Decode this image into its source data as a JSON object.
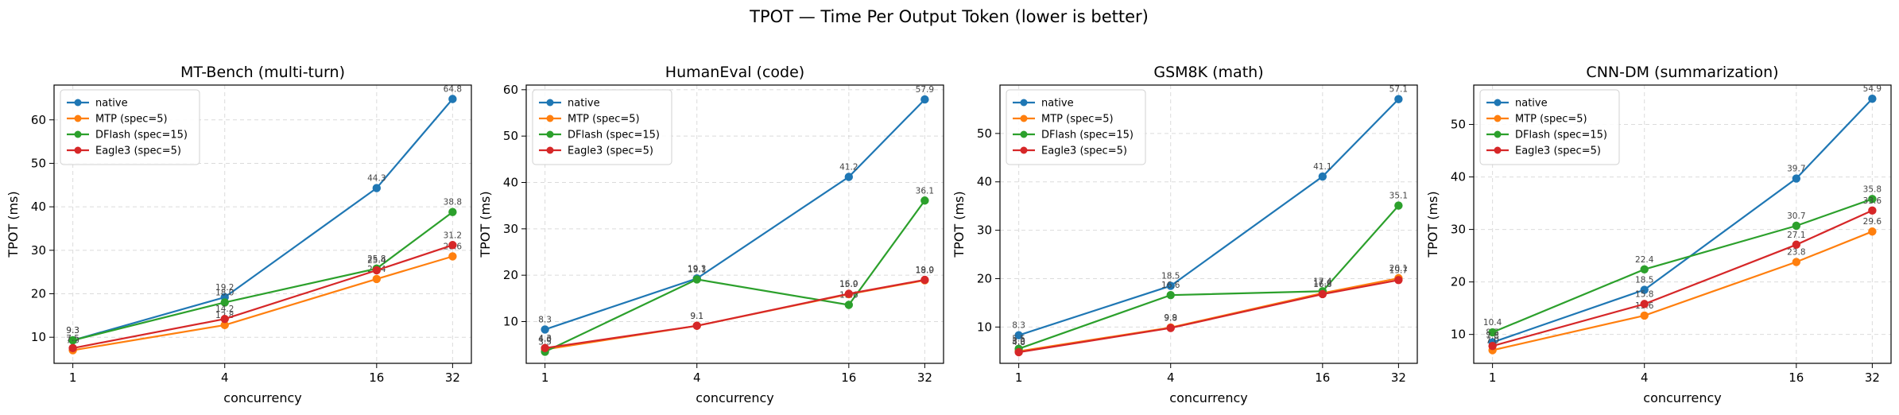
{
  "figure": {
    "title": "TPOT — Time Per Output Token (lower is better)"
  },
  "chart_data": [
    {
      "type": "line",
      "title": "MT-Bench (multi-turn)",
      "xlabel": "concurrency",
      "ylabel": "TPOT (ms)",
      "x": [
        1,
        4,
        16,
        32
      ],
      "xscale": "log2",
      "ylim": [
        4,
        68
      ],
      "yticks": [
        10,
        20,
        30,
        40,
        50,
        60
      ],
      "grid": true,
      "legend": "upper-left",
      "series": [
        {
          "name": "native",
          "color": "#1f77b4",
          "values": [
            9.3,
            19.2,
            44.3,
            64.8
          ],
          "labels": [
            "9.3",
            "19.2",
            "44.3",
            "64.8"
          ]
        },
        {
          "name": "MTP (spec=5)",
          "color": "#ff7f0e",
          "values": [
            7.0,
            12.8,
            23.4,
            28.6
          ],
          "labels": [
            "7.0",
            "12.8",
            "23.4",
            "28.6"
          ]
        },
        {
          "name": "DFlash (spec=15)",
          "color": "#2ca02c",
          "values": [
            9.3,
            18.0,
            25.8,
            38.8
          ],
          "labels": [
            "9.3",
            "18.0",
            "25.8",
            "38.8"
          ]
        },
        {
          "name": "Eagle3 (spec=5)",
          "color": "#d62728",
          "values": [
            7.5,
            14.2,
            25.4,
            31.2
          ],
          "labels": [
            "7.5",
            "14.2",
            "25.4",
            "31.2"
          ]
        }
      ]
    },
    {
      "type": "line",
      "title": "HumanEval (code)",
      "xlabel": "concurrency",
      "ylabel": "TPOT (ms)",
      "x": [
        1,
        4,
        16,
        32
      ],
      "xscale": "log2",
      "ylim": [
        1,
        61
      ],
      "yticks": [
        10,
        20,
        30,
        40,
        50,
        60
      ],
      "grid": true,
      "legend": "upper-left",
      "series": [
        {
          "name": "native",
          "color": "#1f77b4",
          "values": [
            8.3,
            19.3,
            41.2,
            57.9
          ],
          "labels": [
            "8.3",
            "19.3",
            "41.2",
            "57.9"
          ]
        },
        {
          "name": "MTP (spec=5)",
          "color": "#ff7f0e",
          "values": [
            4.0,
            9.1,
            15.9,
            18.9
          ],
          "labels": [
            "4.0",
            "9.1",
            "15.9",
            "18.9"
          ]
        },
        {
          "name": "DFlash (spec=15)",
          "color": "#2ca02c",
          "values": [
            3.5,
            19.1,
            13.6,
            36.1
          ],
          "labels": [
            "3.5",
            "19.1",
            "13.6",
            "36.1"
          ]
        },
        {
          "name": "Eagle3 (spec=5)",
          "color": "#d62728",
          "values": [
            4.3,
            9.1,
            16.0,
            19.0
          ],
          "labels": [
            "4.3",
            "9.1",
            "16.0",
            "19.0"
          ]
        }
      ]
    },
    {
      "type": "line",
      "title": "GSM8K (math)",
      "xlabel": "concurrency",
      "ylabel": "TPOT (ms)",
      "x": [
        1,
        4,
        16,
        32
      ],
      "xscale": "log2",
      "ylim": [
        2.5,
        60
      ],
      "yticks": [
        10,
        20,
        30,
        40,
        50
      ],
      "grid": true,
      "legend": "upper-left",
      "series": [
        {
          "name": "native",
          "color": "#1f77b4",
          "values": [
            8.3,
            18.5,
            41.1,
            57.1
          ],
          "labels": [
            "8.3",
            "18.5",
            "41.1",
            "57.1"
          ]
        },
        {
          "name": "MTP (spec=5)",
          "color": "#ff7f0e",
          "values": [
            5.0,
            9.9,
            17.0,
            20.1
          ],
          "labels": [
            "5.0",
            "9.9",
            "17.0",
            "20.1"
          ]
        },
        {
          "name": "DFlash (spec=15)",
          "color": "#2ca02c",
          "values": [
            5.5,
            16.6,
            17.4,
            35.1
          ],
          "labels": [
            "5.5",
            "16.6",
            "17.4",
            "35.1"
          ]
        },
        {
          "name": "Eagle3 (spec=5)",
          "color": "#d62728",
          "values": [
            4.8,
            9.8,
            16.8,
            19.7
          ],
          "labels": [
            "4.8",
            "9.8",
            "16.8",
            "19.7"
          ]
        }
      ]
    },
    {
      "type": "line",
      "title": "CNN-DM (summarization)",
      "xlabel": "concurrency",
      "ylabel": "TPOT (ms)",
      "x": [
        1,
        4,
        16,
        32
      ],
      "xscale": "log2",
      "ylim": [
        4.5,
        57.5
      ],
      "yticks": [
        10,
        20,
        30,
        40,
        50
      ],
      "grid": true,
      "legend": "upper-left",
      "series": [
        {
          "name": "native",
          "color": "#1f77b4",
          "values": [
            8.5,
            18.5,
            39.7,
            54.9
          ],
          "labels": [
            "8.5",
            "18.5",
            "39.7",
            "54.9"
          ]
        },
        {
          "name": "MTP (spec=5)",
          "color": "#ff7f0e",
          "values": [
            7.0,
            13.6,
            23.8,
            29.6
          ],
          "labels": [
            "7.0",
            "13.6",
            "23.8",
            "29.6"
          ]
        },
        {
          "name": "DFlash (spec=15)",
          "color": "#2ca02c",
          "values": [
            10.4,
            22.4,
            30.7,
            35.8
          ],
          "labels": [
            "10.4",
            "22.4",
            "30.7",
            "35.8"
          ]
        },
        {
          "name": "Eagle3 (spec=5)",
          "color": "#d62728",
          "values": [
            7.8,
            15.8,
            27.1,
            33.6
          ],
          "labels": [
            "7.8",
            "15.8",
            "27.1",
            "33.6"
          ]
        }
      ]
    }
  ]
}
